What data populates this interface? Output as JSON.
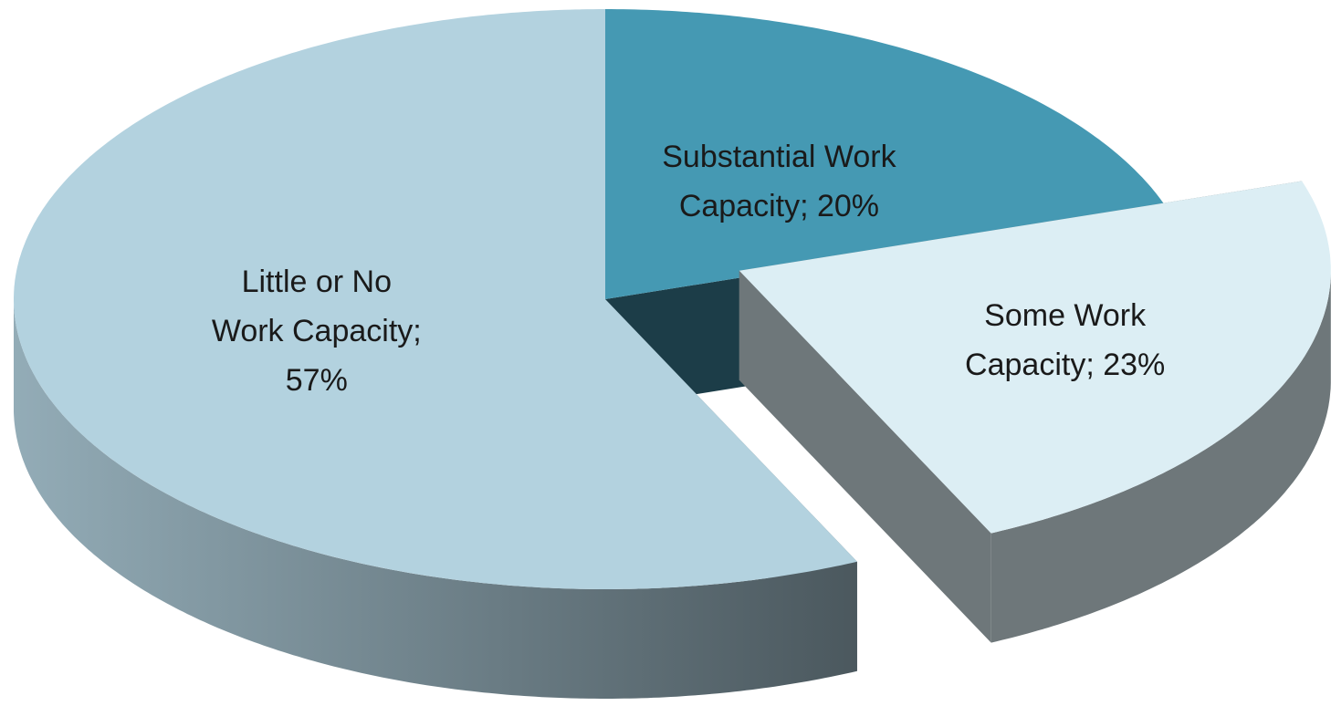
{
  "chart_data": {
    "type": "pie",
    "values": [
      20,
      23,
      57
    ],
    "value_labels": [
      "Substantial Work Capacity; 20%",
      "Some Work Capacity; 23%",
      "Little or No Work Capacity; 57%"
    ],
    "colors": [
      "#4599b3",
      "#dceef4",
      "#b3d2df"
    ],
    "explode": [
      false,
      true,
      false
    ]
  }
}
